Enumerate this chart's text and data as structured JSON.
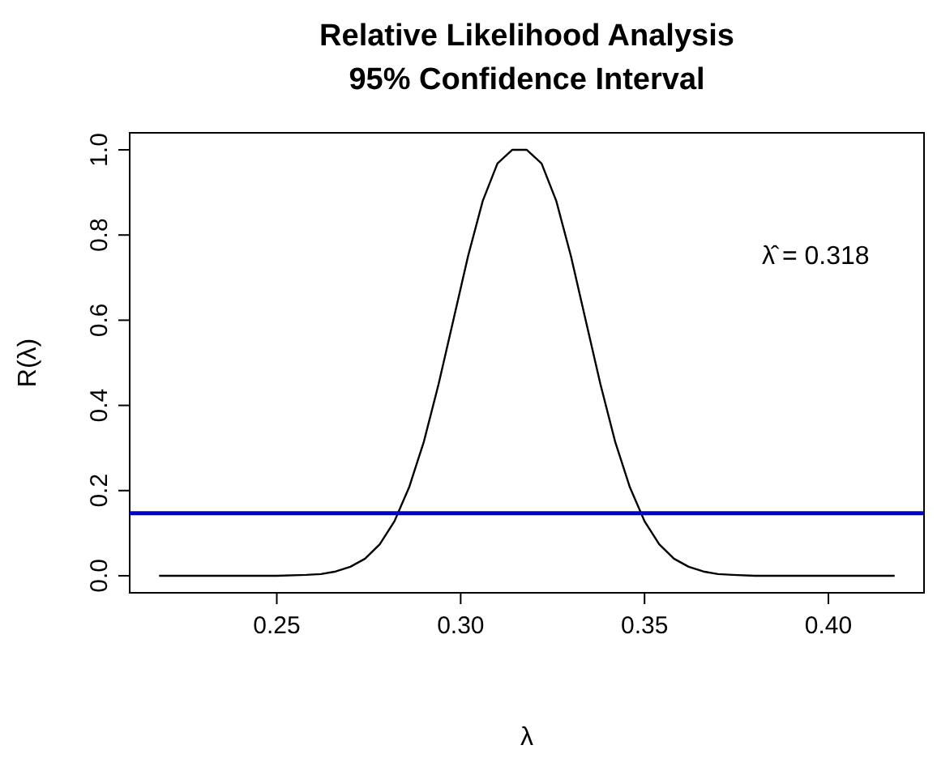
{
  "chart_data": {
    "type": "line",
    "title": "Relative Likelihood Analysis",
    "subtitle": "95% Confidence Interval",
    "xlabel": "λ",
    "ylabel": "R(λ)",
    "x": [
      0.218,
      0.23,
      0.24,
      0.25,
      0.258,
      0.262,
      0.266,
      0.27,
      0.274,
      0.278,
      0.282,
      0.286,
      0.29,
      0.294,
      0.298,
      0.302,
      0.306,
      0.31,
      0.314,
      0.318,
      0.322,
      0.326,
      0.33,
      0.334,
      0.338,
      0.342,
      0.346,
      0.35,
      0.354,
      0.358,
      0.362,
      0.366,
      0.37,
      0.374,
      0.38,
      0.39,
      0.4,
      0.418
    ],
    "series": [
      {
        "color": "#000000",
        "values": [
          0,
          0,
          0,
          0,
          0.002,
          0.004,
          0.01,
          0.021,
          0.04,
          0.074,
          0.128,
          0.208,
          0.315,
          0.45,
          0.6,
          0.75,
          0.88,
          0.968,
          1,
          1,
          0.968,
          0.88,
          0.75,
          0.6,
          0.45,
          0.315,
          0.208,
          0.128,
          0.074,
          0.04,
          0.021,
          0.01,
          0.004,
          0.002,
          0,
          0,
          0,
          0
        ]
      }
    ],
    "xlim": [
      0.21,
      0.426
    ],
    "xticks": [
      0.25,
      {
        "value": 0.3,
        "label": "0.30"
      },
      0.35,
      {
        "value": 0.4,
        "label": "0.40"
      }
    ],
    "ylim": [
      -0.04,
      1.04
    ],
    "yticks": [
      {
        "value": 0,
        "label": "0.0"
      },
      0.2,
      0.4,
      0.6,
      0.8,
      {
        "value": 1,
        "label": "1.0"
      }
    ],
    "ref_lines": [
      {
        "axis": "y",
        "value": 0.147,
        "color": "#0000cc"
      }
    ],
    "annotations": [
      "λ̂ = 0.318"
    ],
    "grid": false,
    "marker": "none",
    "line_style": "solid"
  }
}
